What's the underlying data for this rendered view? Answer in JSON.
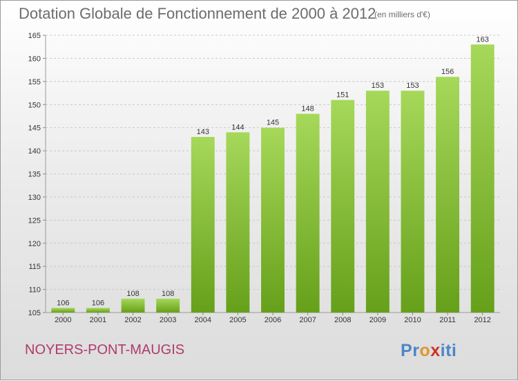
{
  "header": {
    "title": "Dotation Globale de Fonctionnement de 2000 à 2012",
    "unit": "(en milliers d'€)"
  },
  "footer": {
    "commune": "NOYERS-PONT-MAUGIS",
    "logo_letters": [
      "P",
      "r",
      "o",
      "x",
      "i",
      "t",
      "i"
    ]
  },
  "colors": {
    "bar_light": "#a6d85a",
    "bar_dark": "#66a01a",
    "logo": [
      "#4a86c8",
      "#4a86c8",
      "#e0962c",
      "#d0312d",
      "#4a86c8",
      "#4a86c8",
      "#4a86c8"
    ]
  },
  "chart_data": {
    "type": "bar",
    "title": "Dotation Globale de Fonctionnement de 2000 à 2012",
    "subtitle": "(en milliers d'€)",
    "categories": [
      "2000",
      "2001",
      "2002",
      "2003",
      "2004",
      "2005",
      "2006",
      "2007",
      "2008",
      "2009",
      "2010",
      "2011",
      "2012"
    ],
    "values": [
      106,
      106,
      108,
      108,
      143,
      144,
      145,
      148,
      151,
      153,
      153,
      156,
      163
    ],
    "ylim": [
      105,
      165
    ],
    "yticks": [
      105,
      110,
      115,
      120,
      125,
      130,
      135,
      140,
      145,
      150,
      155,
      160,
      165
    ],
    "grid": true,
    "data_labels": true
  }
}
